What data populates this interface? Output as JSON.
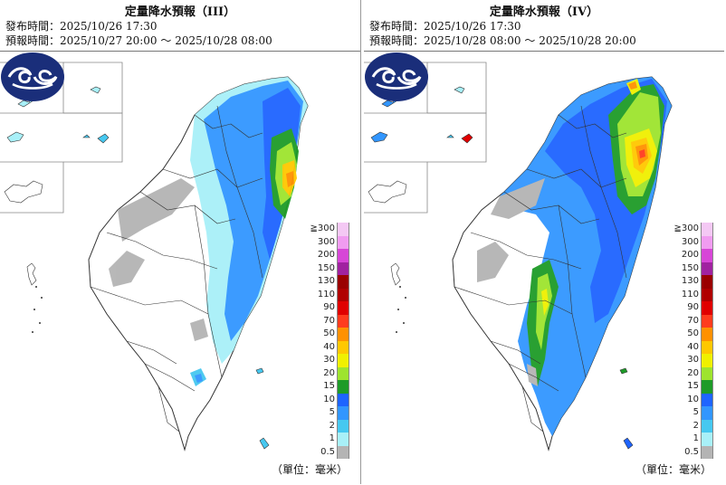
{
  "panels": [
    {
      "title": "定量降水預報（III）",
      "issue_label": "發布時間：2025/10/26 17:30",
      "valid_label": "預報時間：2025/10/27 20:00 ～ 2025/10/28 08:00"
    },
    {
      "title": "定量降水預報（IV）",
      "issue_label": "發布時間：2025/10/26 17:30",
      "valid_label": "預報時間：2025/10/28 08:00 ～ 2025/10/28 20:00"
    }
  ],
  "legend": {
    "items": [
      {
        "label": "≧300",
        "color": "#f4c8f4"
      },
      {
        "label": "300",
        "color": "#f09cf0"
      },
      {
        "label": "200",
        "color": "#d746d7"
      },
      {
        "label": "150",
        "color": "#a022a0"
      },
      {
        "label": "130",
        "color": "#9a0000"
      },
      {
        "label": "110",
        "color": "#b00000"
      },
      {
        "label": "90",
        "color": "#e00000"
      },
      {
        "label": "70",
        "color": "#ff3c1e"
      },
      {
        "label": "50",
        "color": "#ff9100"
      },
      {
        "label": "40",
        "color": "#ffc800"
      },
      {
        "label": "30",
        "color": "#f0f000"
      },
      {
        "label": "20",
        "color": "#9ee42e"
      },
      {
        "label": "15",
        "color": "#1e9b28"
      },
      {
        "label": "10",
        "color": "#1e64ff"
      },
      {
        "label": "5",
        "color": "#3296ff"
      },
      {
        "label": "2",
        "color": "#46c8f0"
      },
      {
        "label": "1",
        "color": "#a8f0f8"
      },
      {
        "label": "0.5",
        "color": "#b4b4b4"
      }
    ],
    "unit_label": "（單位：毫米）"
  },
  "colors": {
    "land": "#ffffff",
    "border": "#333333",
    "logo_blue": "#1a2e7a"
  }
}
